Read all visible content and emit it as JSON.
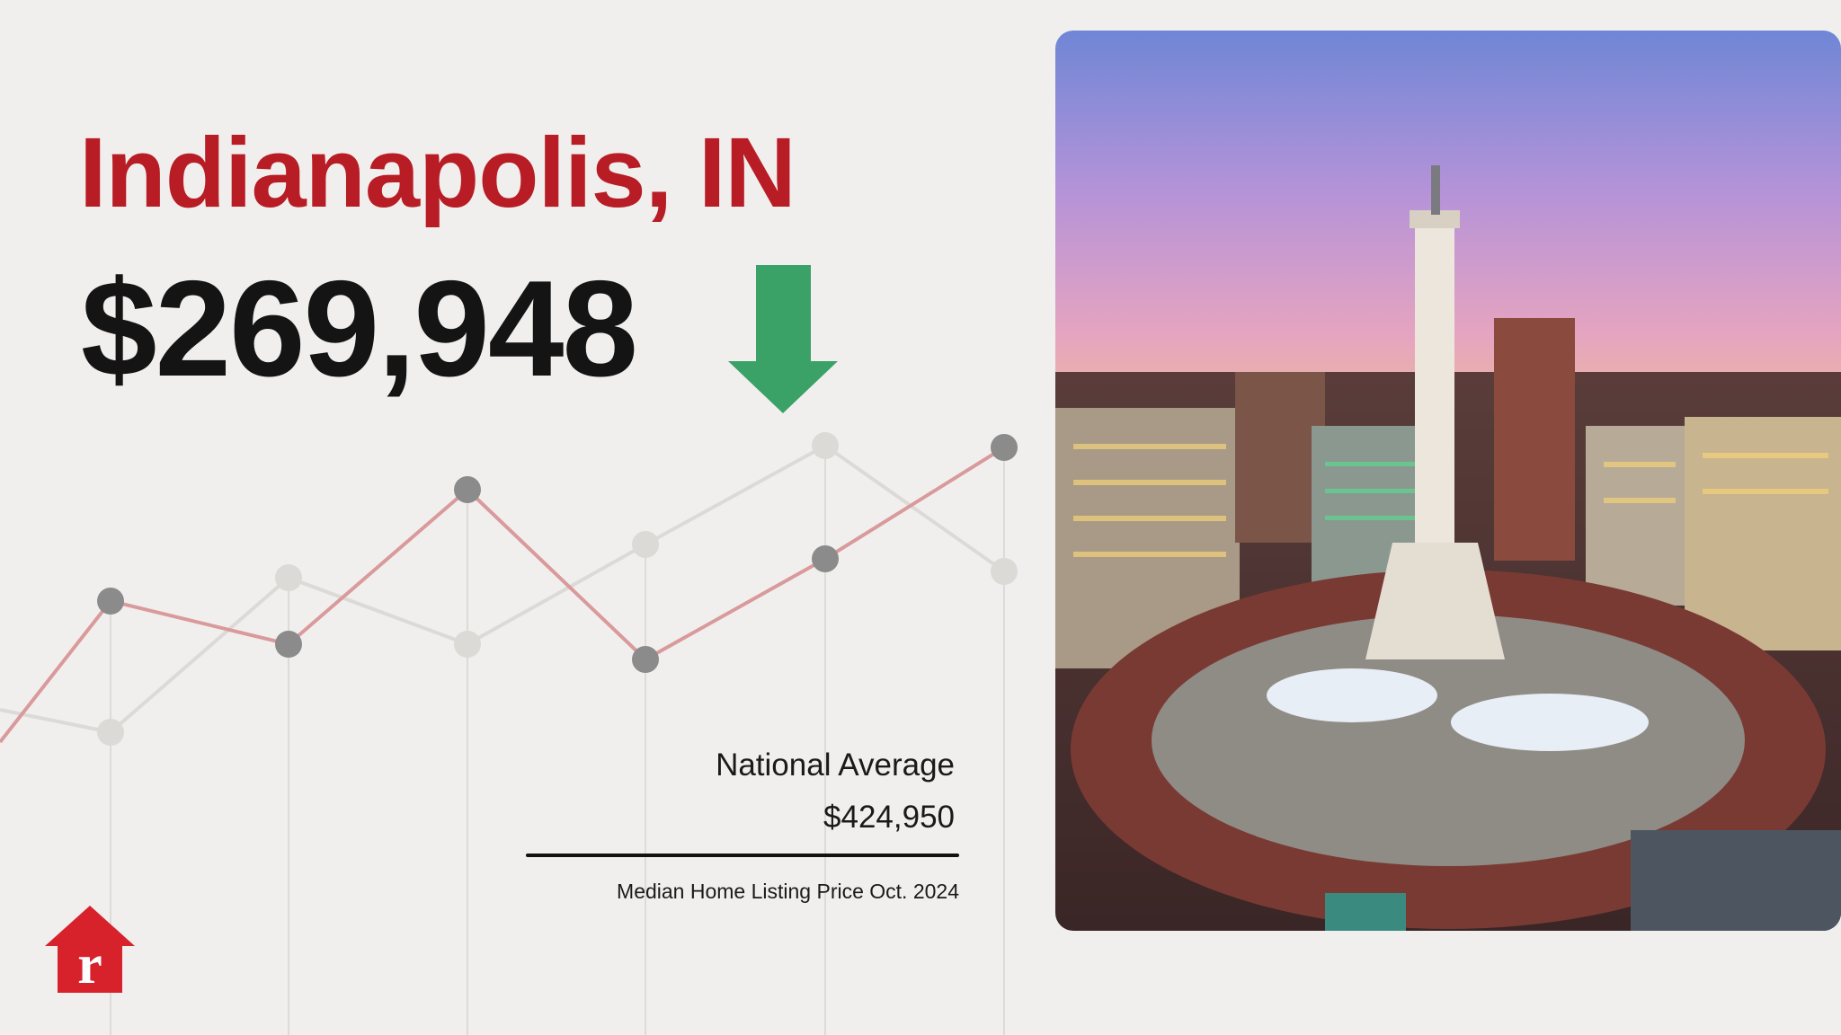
{
  "header": {
    "city": "Indianapolis, IN",
    "median_price": "$269,948",
    "trend_icon": "arrow-down-icon",
    "trend_color": "#3aa167"
  },
  "national": {
    "label": "National Average",
    "value": "$424,950"
  },
  "caption": "Median Home Listing Price Oct. 2024",
  "logo": {
    "icon": "house-r-logo",
    "letter": "r",
    "color": "#d7222c"
  },
  "photo": {
    "subject": "Indianapolis skyline with Soldiers' and Sailors' Monument at dusk"
  },
  "colors": {
    "title": "#b81c24",
    "background": "#f1efed",
    "line_red": "#d99a9c",
    "line_gray": "#dcdad6",
    "dot_dark": "#8b8b8b",
    "dot_light": "#dcdad6"
  }
}
